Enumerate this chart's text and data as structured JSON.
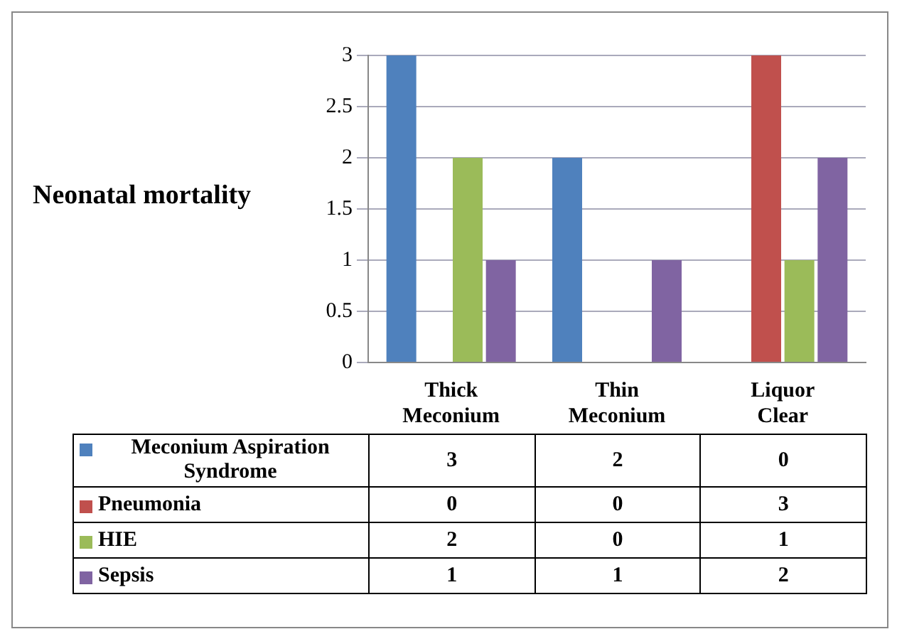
{
  "chart_data": {
    "type": "bar",
    "ylabel": "Neonatal mortality",
    "categories": [
      "Thick Meconium",
      "Thin Meconium",
      "Liquor Clear"
    ],
    "series": [
      {
        "name": "Meconium Aspiration Syndrome",
        "color": "#4f81bd",
        "values": [
          3,
          2,
          0
        ]
      },
      {
        "name": "Pneumonia",
        "color": "#c0504d",
        "values": [
          0,
          0,
          3
        ]
      },
      {
        "name": "HIE",
        "color": "#9bbb59",
        "values": [
          2,
          0,
          1
        ]
      },
      {
        "name": "Sepsis",
        "color": "#8064a2",
        "values": [
          1,
          1,
          2
        ]
      }
    ],
    "ylim": [
      0,
      3
    ],
    "yticks": [
      0,
      0.5,
      1,
      1.5,
      2,
      2.5,
      3
    ],
    "grid": "y",
    "legend": "bottom",
    "data_labels": true
  }
}
